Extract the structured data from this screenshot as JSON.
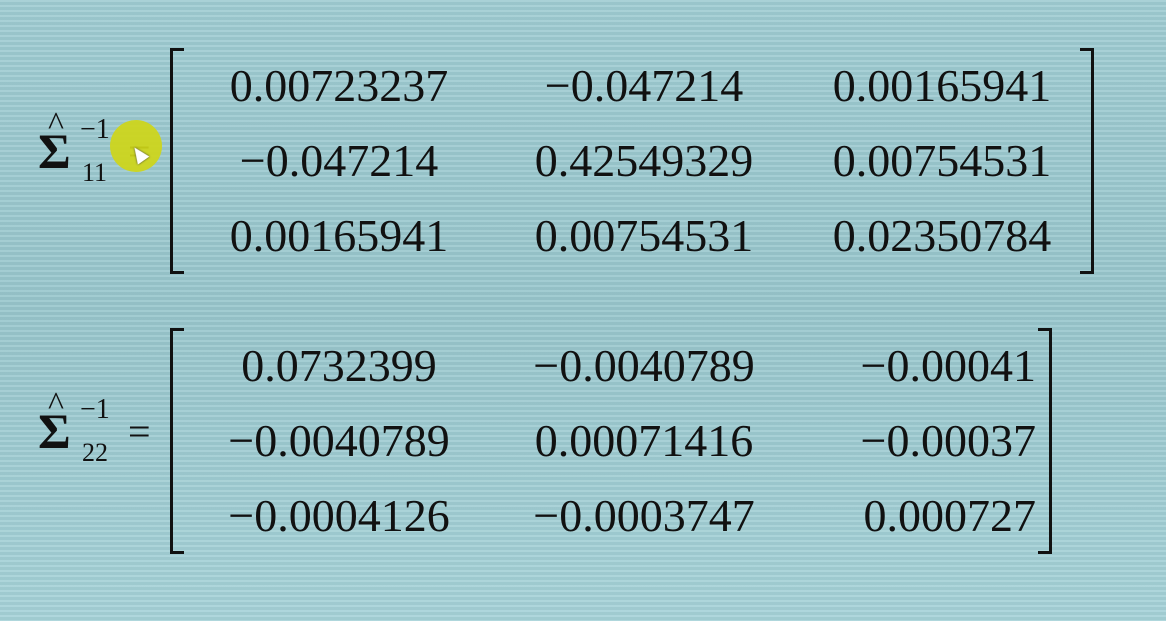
{
  "equations": [
    {
      "symbol": "Σ",
      "hat": "^",
      "superscript": "−1",
      "subscript": "11",
      "equals": "=",
      "matrix": [
        [
          "0.00723237",
          "−0.047214",
          "0.00165941"
        ],
        [
          "−0.047214",
          "0.42549329",
          "0.00754531"
        ],
        [
          "0.00165941",
          "0.00754531",
          "0.02350784"
        ]
      ]
    },
    {
      "symbol": "Σ",
      "hat": "^",
      "superscript": "−1",
      "subscript": "22",
      "equals": "=",
      "matrix": [
        [
          "0.0732399",
          "−0.0040789",
          "−0.00041"
        ],
        [
          "−0.0040789",
          "0.00071416",
          "−0.00037"
        ],
        [
          "−0.0004126",
          "−0.0003747",
          "0.000727"
        ]
      ]
    }
  ],
  "cursor": {
    "highlight_color": "#ced618"
  }
}
